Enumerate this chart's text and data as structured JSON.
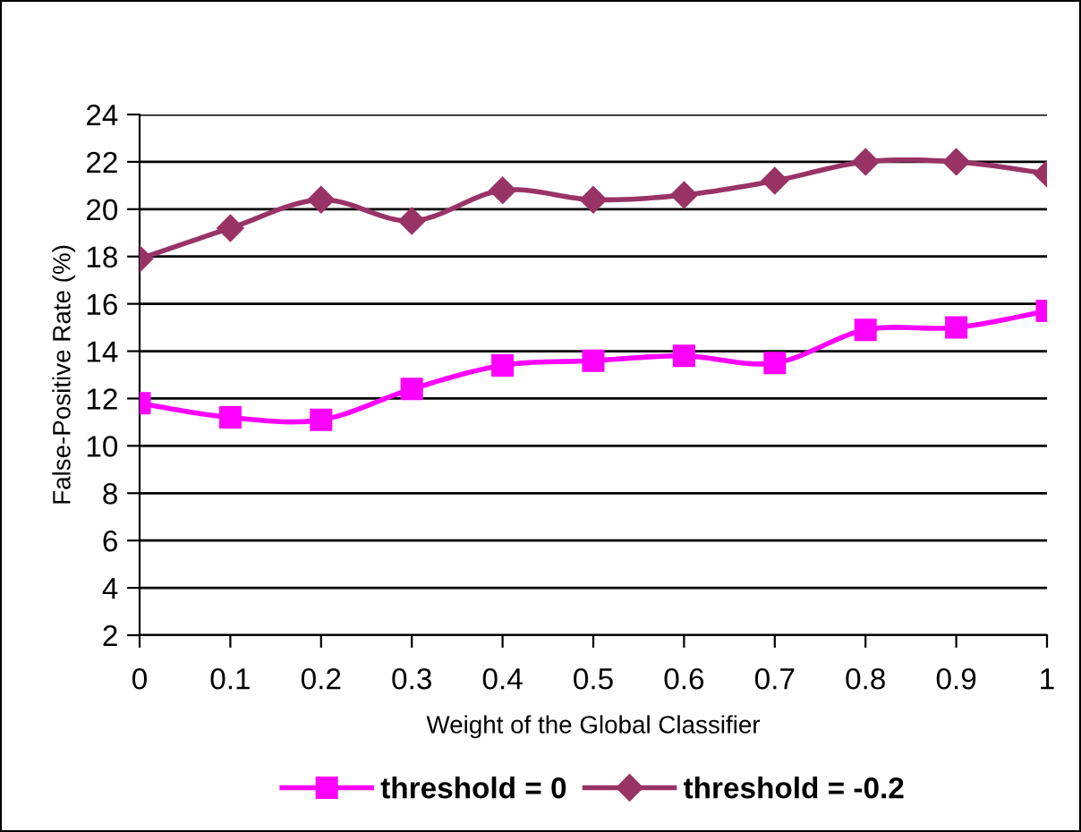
{
  "chart_data": {
    "type": "line",
    "xlabel": "Weight of the Global Classifier",
    "ylabel": "False-Positive Rate (%)",
    "x": [
      0,
      0.1,
      0.2,
      0.3,
      0.4,
      0.5,
      0.6,
      0.7,
      0.8,
      0.9,
      1
    ],
    "series": [
      {
        "name": "threshold = 0",
        "color": "#ff00ff",
        "marker": "square",
        "values": [
          11.8,
          11.2,
          11.1,
          12.4,
          13.4,
          13.6,
          13.8,
          13.5,
          14.9,
          15.0,
          15.7
        ]
      },
      {
        "name": "threshold = -0.2",
        "color": "#993366",
        "marker": "diamond",
        "values": [
          17.9,
          19.2,
          20.4,
          19.5,
          20.8,
          20.4,
          20.6,
          21.2,
          22.0,
          22.0,
          21.5
        ]
      }
    ],
    "xlim": [
      0,
      1
    ],
    "xticks": [
      0,
      0.1,
      0.2,
      0.3,
      0.4,
      0.5,
      0.6,
      0.7,
      0.8,
      0.9,
      1
    ],
    "ylim": [
      2,
      24
    ],
    "yticks": [
      2,
      4,
      6,
      8,
      10,
      12,
      14,
      16,
      18,
      20,
      22,
      24
    ],
    "grid": "y",
    "legend": "bottom",
    "line_style": "solid"
  }
}
